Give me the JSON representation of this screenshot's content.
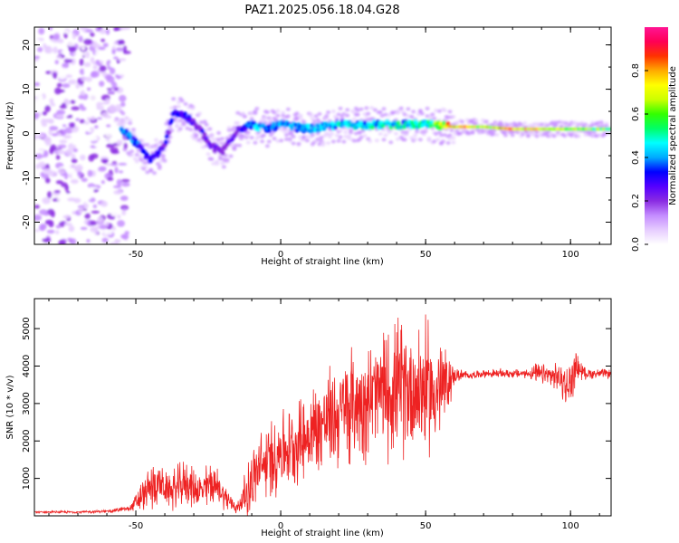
{
  "title": "PAZ1.2025.056.18.04.G28",
  "colors": {
    "snr_line": "#ee2222",
    "colorbar": [
      "#ffffff",
      "#e6ccff",
      "#c48cff",
      "#8a2be2",
      "#5500ff",
      "#0000ff",
      "#00aaff",
      "#00ffff",
      "#00ff66",
      "#33ff00",
      "#ccff00",
      "#ffff00",
      "#ffaa00",
      "#ff3300",
      "#ff0055",
      "#ff1493"
    ]
  },
  "chart_data": [
    {
      "type": "heatmap",
      "title": "PAZ1.2025.056.18.04.G28",
      "xlabel": "Height of straight line (km)",
      "ylabel": "Frequency (Hz)",
      "xlim": [
        -85,
        114
      ],
      "ylim": [
        -25,
        24
      ],
      "x_ticks": [
        -50,
        0,
        50,
        100
      ],
      "y_ticks": [
        -20,
        -10,
        0,
        10,
        20
      ],
      "colorbar": {
        "label": "Normalized spectral amplitude",
        "range": [
          0.0,
          1.0
        ],
        "ticks": [
          "0.0",
          "0.2",
          "0.4",
          "0.6",
          "0.8"
        ]
      },
      "ridge": {
        "x": [
          -55,
          -50,
          -45,
          -40,
          -37,
          -33,
          -28,
          -24,
          -20,
          -15,
          -10,
          -5,
          0,
          10,
          20,
          30,
          40,
          50,
          60,
          70,
          80,
          90,
          100,
          114
        ],
        "freq": [
          1,
          -2,
          -6,
          -3,
          5,
          4,
          1,
          -3,
          -4,
          1,
          2,
          1,
          2,
          1,
          2,
          2,
          2,
          2,
          1.5,
          1.5,
          1,
          1,
          1,
          1
        ],
        "amplitude": [
          0.45,
          0.4,
          0.35,
          0.3,
          0.4,
          0.35,
          0.3,
          0.3,
          0.25,
          0.3,
          0.45,
          0.45,
          0.45,
          0.45,
          0.5,
          0.5,
          0.5,
          0.55,
          0.85,
          0.7,
          0.9,
          0.75,
          0.7,
          0.6
        ]
      }
    },
    {
      "type": "line",
      "xlabel": "Height of straight line (km)",
      "ylabel": "SNR (10 * v/v)",
      "xlim": [
        -85,
        114
      ],
      "ylim": [
        0,
        5800
      ],
      "x_ticks": [
        -50,
        0,
        50,
        100
      ],
      "y_ticks": [
        1000,
        2000,
        3000,
        4000,
        5000
      ],
      "series": [
        {
          "x": [
            -85,
            -70,
            -60,
            -52,
            -48,
            -44,
            -42,
            -40,
            -36,
            -33,
            -30,
            -27,
            -24,
            -21,
            -18,
            -15,
            -12,
            -10,
            -8,
            -5,
            -2,
            0,
            3,
            6,
            10,
            15,
            20,
            25,
            30,
            35,
            40,
            45,
            50,
            53,
            56,
            60,
            65,
            70,
            75,
            80,
            85,
            88,
            92,
            96,
            99,
            100,
            101,
            102,
            105,
            110,
            114
          ],
          "mean": [
            100,
            100,
            120,
            200,
            500,
            800,
            900,
            700,
            700,
            900,
            750,
            650,
            900,
            700,
            400,
            200,
            600,
            900,
            1200,
            1400,
            1600,
            1800,
            1800,
            2000,
            2200,
            2500,
            2700,
            3000,
            3100,
            3300,
            3400,
            3400,
            3400,
            3300,
            3400,
            3750,
            3750,
            3800,
            3800,
            3800,
            3800,
            3800,
            3750,
            3700,
            3400,
            3500,
            3800,
            4000,
            3800,
            3800,
            3800
          ],
          "amp": [
            30,
            30,
            40,
            80,
            400,
            700,
            500,
            400,
            600,
            600,
            500,
            500,
            700,
            400,
            300,
            150,
            600,
            900,
            900,
            1000,
            1100,
            1100,
            1000,
            1100,
            1200,
            1300,
            1400,
            1500,
            1500,
            1600,
            1800,
            1700,
            1800,
            1500,
            1300,
            200,
            100,
            100,
            120,
            120,
            120,
            250,
            300,
            350,
            600,
            700,
            500,
            400,
            150,
            120,
            120
          ]
        }
      ]
    }
  ]
}
